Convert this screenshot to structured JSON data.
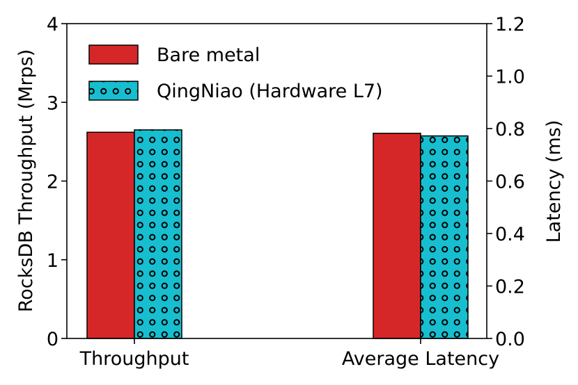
{
  "chart_data": {
    "type": "bar",
    "categories": [
      "Throughput",
      "Average Latency"
    ],
    "series": [
      {
        "name": "Bare metal",
        "values": [
          2.62,
          0.782
        ],
        "color": "#d62728",
        "pattern": "solid"
      },
      {
        "name": "QingNiao (Hardware L7)",
        "values": [
          2.65,
          0.772
        ],
        "color": "#17becf",
        "pattern": "circles"
      }
    ],
    "value_axis_for_category": [
      "left",
      "right"
    ],
    "ylabel_left": "RocksDB Throughput (Mrps)",
    "ylim_left": [
      0,
      4
    ],
    "yticks_left": [
      "0",
      "1",
      "2",
      "3",
      "4"
    ],
    "ylabel_right": "Latency (ms)",
    "ylim_right": [
      0,
      1.2
    ],
    "yticks_right": [
      "0.0",
      "0.2",
      "0.4",
      "0.6",
      "0.8",
      "1.0",
      "1.2"
    ],
    "grid": false,
    "legend_position": "top-left"
  }
}
